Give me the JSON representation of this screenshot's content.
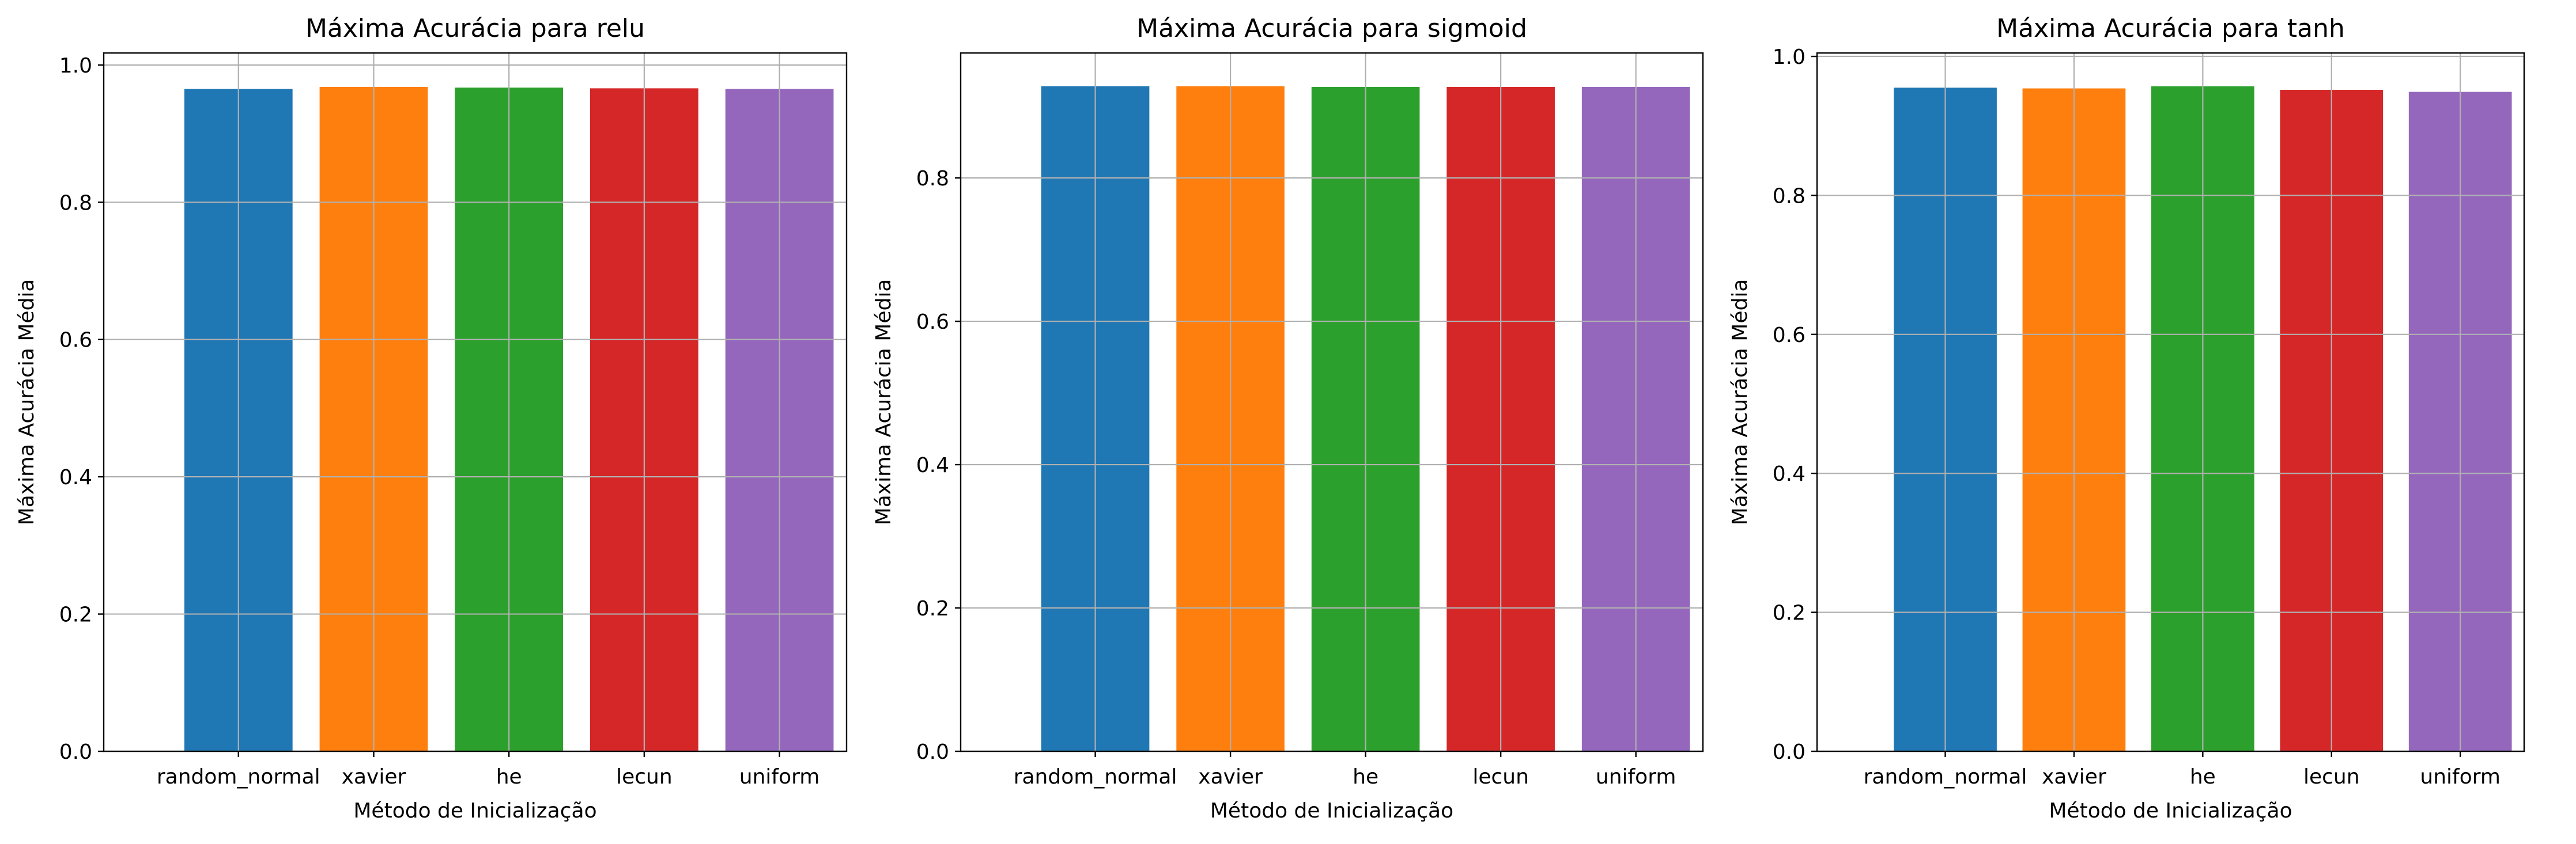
{
  "chart_data": [
    {
      "type": "bar",
      "title": "Máxima Acurácia para relu",
      "xlabel": "Método de Inicialização",
      "ylabel": "Máxima Acurácia Média",
      "categories": [
        "random_normal",
        "xavier",
        "he",
        "lecun",
        "uniform"
      ],
      "values": [
        0.965,
        0.968,
        0.967,
        0.966,
        0.965
      ],
      "colors": [
        "#1f77b4",
        "#ff7f0e",
        "#2ca02c",
        "#d62728",
        "#9467bd"
      ],
      "ylim": [
        0,
        1.0175
      ],
      "yticks": [
        "0.0",
        "0.2",
        "0.4",
        "0.6",
        "0.8",
        "1.0"
      ],
      "grid": true
    },
    {
      "type": "bar",
      "title": "Máxima Acurácia para sigmoid",
      "xlabel": "Método de Inicialização",
      "ylabel": "Máxima Acurácia Média",
      "categories": [
        "random_normal",
        "xavier",
        "he",
        "lecun",
        "uniform"
      ],
      "values": [
        0.928,
        0.928,
        0.927,
        0.927,
        0.927
      ],
      "colors": [
        "#1f77b4",
        "#ff7f0e",
        "#2ca02c",
        "#d62728",
        "#9467bd"
      ],
      "ylim": [
        0,
        0.9744
      ],
      "yticks": [
        "0.0",
        "0.2",
        "0.4",
        "0.6",
        "0.8"
      ],
      "grid": true
    },
    {
      "type": "bar",
      "title": "Máxima Acurácia para tanh",
      "xlabel": "Método de Inicialização",
      "ylabel": "Máxima Acurácia Média",
      "categories": [
        "random_normal",
        "xavier",
        "he",
        "lecun",
        "uniform"
      ],
      "values": [
        0.955,
        0.954,
        0.957,
        0.952,
        0.949
      ],
      "colors": [
        "#1f77b4",
        "#ff7f0e",
        "#2ca02c",
        "#d62728",
        "#9467bd"
      ],
      "ylim": [
        0,
        1.005
      ],
      "yticks": [
        "0.0",
        "0.2",
        "0.4",
        "0.6",
        "0.8",
        "1.0"
      ],
      "grid": true
    }
  ]
}
